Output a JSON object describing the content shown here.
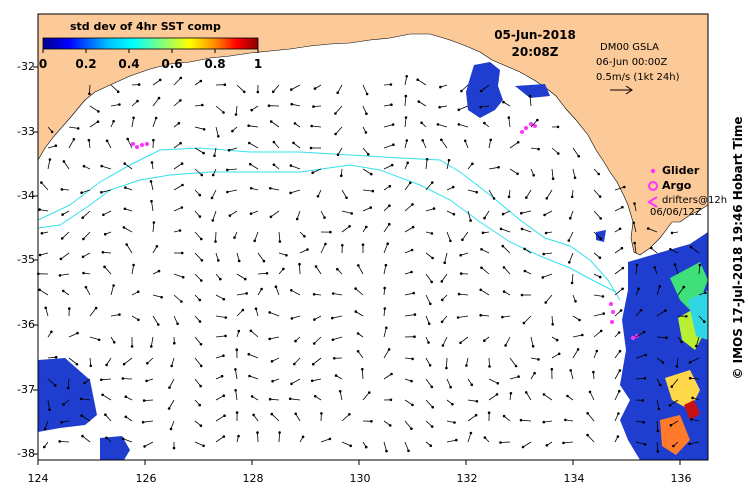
{
  "colorbar": {
    "title": "std dev of 4hr SST comp",
    "ticks": [
      "0",
      "0.2",
      "0.4",
      "0.6",
      "0.8",
      "1"
    ],
    "colors": [
      "#00008b",
      "#0000ff",
      "#00bfff",
      "#00ffff",
      "#7fff7f",
      "#ffff00",
      "#ff8c00",
      "#ff0000",
      "#8b0000"
    ]
  },
  "header": {
    "date": "05-Jun-2018",
    "time": "20:08Z"
  },
  "gsla": {
    "line1": "DM00 GSLA",
    "line2": "06-Jun 00:00Z",
    "line3": "0.5m/s (1kt 24h)"
  },
  "legend": {
    "glider": "Glider",
    "argo": "Argo",
    "drifters_line1": "drifters@12h",
    "drifters_line2": "06/06/12Z"
  },
  "credit": "© IMOS 17-Jul-2018 19:46 Hobart Time",
  "axes": {
    "x_ticks": [
      "124",
      "126",
      "128",
      "130",
      "132",
      "134",
      "136"
    ],
    "y_ticks": [
      "-32",
      "-33",
      "-34",
      "-35",
      "-36",
      "-37",
      "-38"
    ],
    "lon_range": [
      124,
      136.5
    ],
    "lat_range": [
      -38.1,
      -31.4
    ]
  },
  "colors": {
    "land": "#fcc998",
    "ocean": "#ffffff",
    "contour": "#33e0ee",
    "glider": "#ff33ff",
    "sst_patch": "#1f3ecf"
  }
}
